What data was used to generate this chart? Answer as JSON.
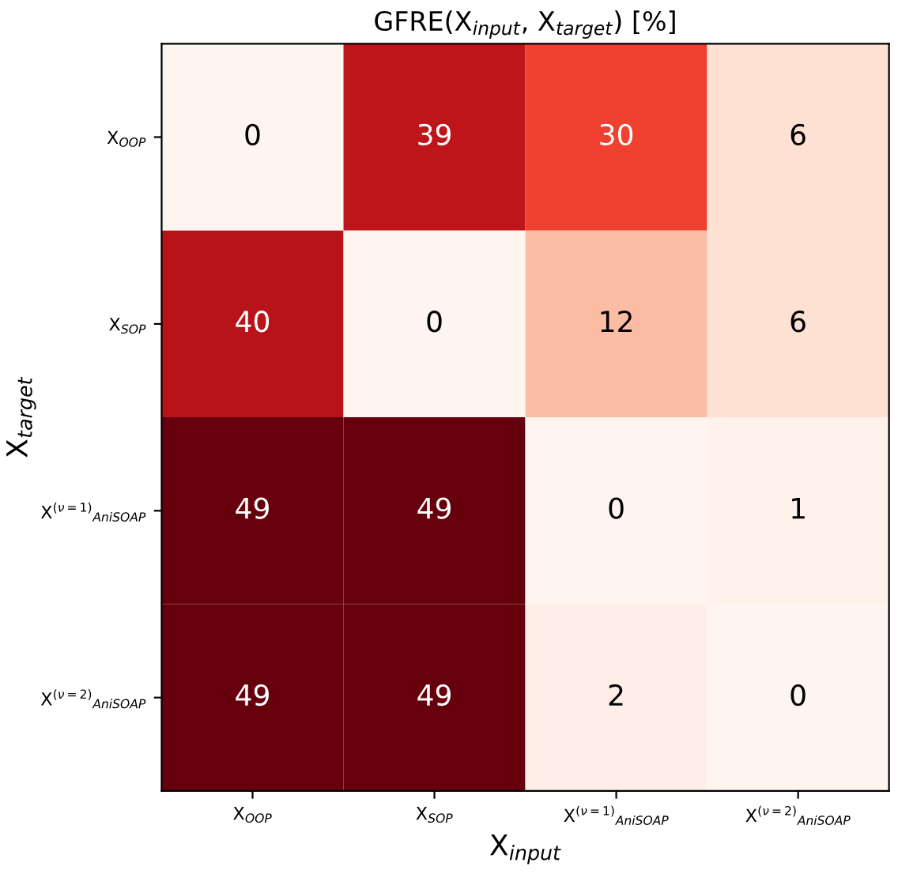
{
  "chart_data": {
    "type": "heatmap",
    "title": "GFRE(X$_{input}$, X$_{target}$) [%]",
    "xlabel": "X$_{input}$",
    "ylabel": "X$_{target}$",
    "categories": [
      "X$_{OOP}$",
      "X$_{SOP}$",
      "X$^{(ν=1)}$$_{AniSOAP}$",
      "X$^{(ν=2)}$$_{AniSOAP}$"
    ],
    "y_categories": [
      "X$_{OOP}$",
      "X$_{SOP}$",
      "X$^{(ν=1)}$$_{AniSOAP}$",
      "X$^{(ν=2)}$$_{AniSOAP}$"
    ],
    "cells": [
      [
        0,
        39,
        30,
        6
      ],
      [
        40,
        0,
        12,
        6
      ],
      [
        49,
        49,
        0,
        1
      ],
      [
        49,
        49,
        2,
        0
      ]
    ],
    "data_labels": true
  }
}
